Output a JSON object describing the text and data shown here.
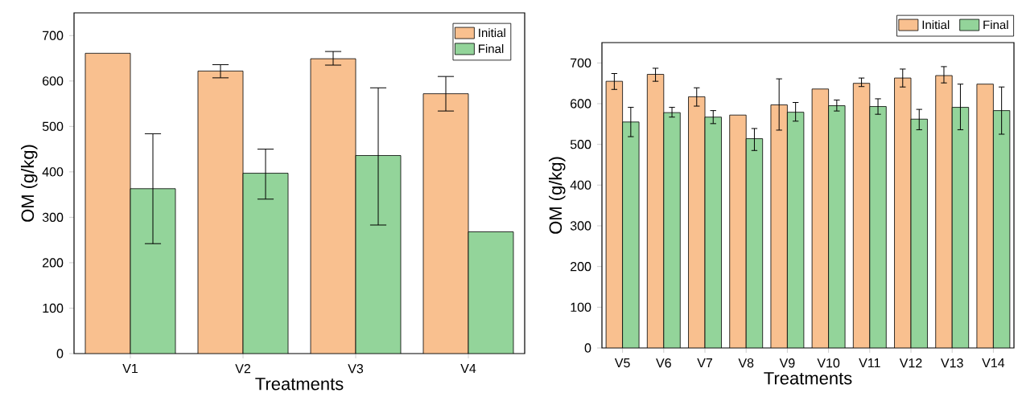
{
  "chart_data": [
    {
      "type": "bar",
      "categories": [
        "V1",
        "V2",
        "V3",
        "V4"
      ],
      "xlabel": "Treatments",
      "ylabel": "OM (g/kg)",
      "ylim": [
        0,
        750
      ],
      "yticks": [
        0,
        100,
        200,
        300,
        400,
        500,
        600,
        700
      ],
      "legend": "top right",
      "series": [
        {
          "name": "Initial",
          "color": "#f9c08f",
          "values": [
            661,
            622,
            649,
            572
          ],
          "errors": [
            null,
            [
              607,
              636
            ],
            [
              635,
              665
            ],
            [
              534,
              610
            ]
          ]
        },
        {
          "name": "Final",
          "color": "#93d49a",
          "values": [
            363,
            397,
            436,
            268
          ],
          "errors": [
            [
              242,
              484
            ],
            [
              340,
              450
            ],
            [
              283,
              585
            ],
            null
          ]
        }
      ]
    },
    {
      "type": "bar",
      "categories": [
        "V5",
        "V6",
        "V7",
        "V8",
        "V9",
        "V10",
        "V11",
        "V12",
        "V13",
        "V14"
      ],
      "xlabel": "Treatments",
      "ylabel": "OM (g/kg)",
      "ylim": [
        0,
        750
      ],
      "yticks": [
        0,
        100,
        200,
        300,
        400,
        500,
        600,
        700
      ],
      "legend": "top right",
      "series": [
        {
          "name": "Initial",
          "color": "#f9c08f",
          "values": [
            655,
            672,
            617,
            572,
            597,
            636,
            650,
            663,
            669,
            648
          ],
          "errors": [
            [
              635,
              674
            ],
            [
              655,
              687
            ],
            [
              594,
              639
            ],
            null,
            [
              535,
              661
            ],
            null,
            [
              642,
              663
            ],
            [
              641,
              685
            ],
            [
              651,
              691
            ],
            null
          ]
        },
        {
          "name": "Final",
          "color": "#93d49a",
          "values": [
            555,
            578,
            567,
            514,
            579,
            595,
            593,
            562,
            591,
            583
          ],
          "errors": [
            [
              519,
              591
            ],
            [
              567,
              591
            ],
            [
              551,
              583
            ],
            [
              485,
              539
            ],
            [
              557,
              603
            ],
            [
              582,
              609
            ],
            [
              574,
              612
            ],
            [
              536,
              586
            ],
            [
              536,
              648
            ],
            [
              525,
              641
            ]
          ]
        }
      ]
    }
  ]
}
